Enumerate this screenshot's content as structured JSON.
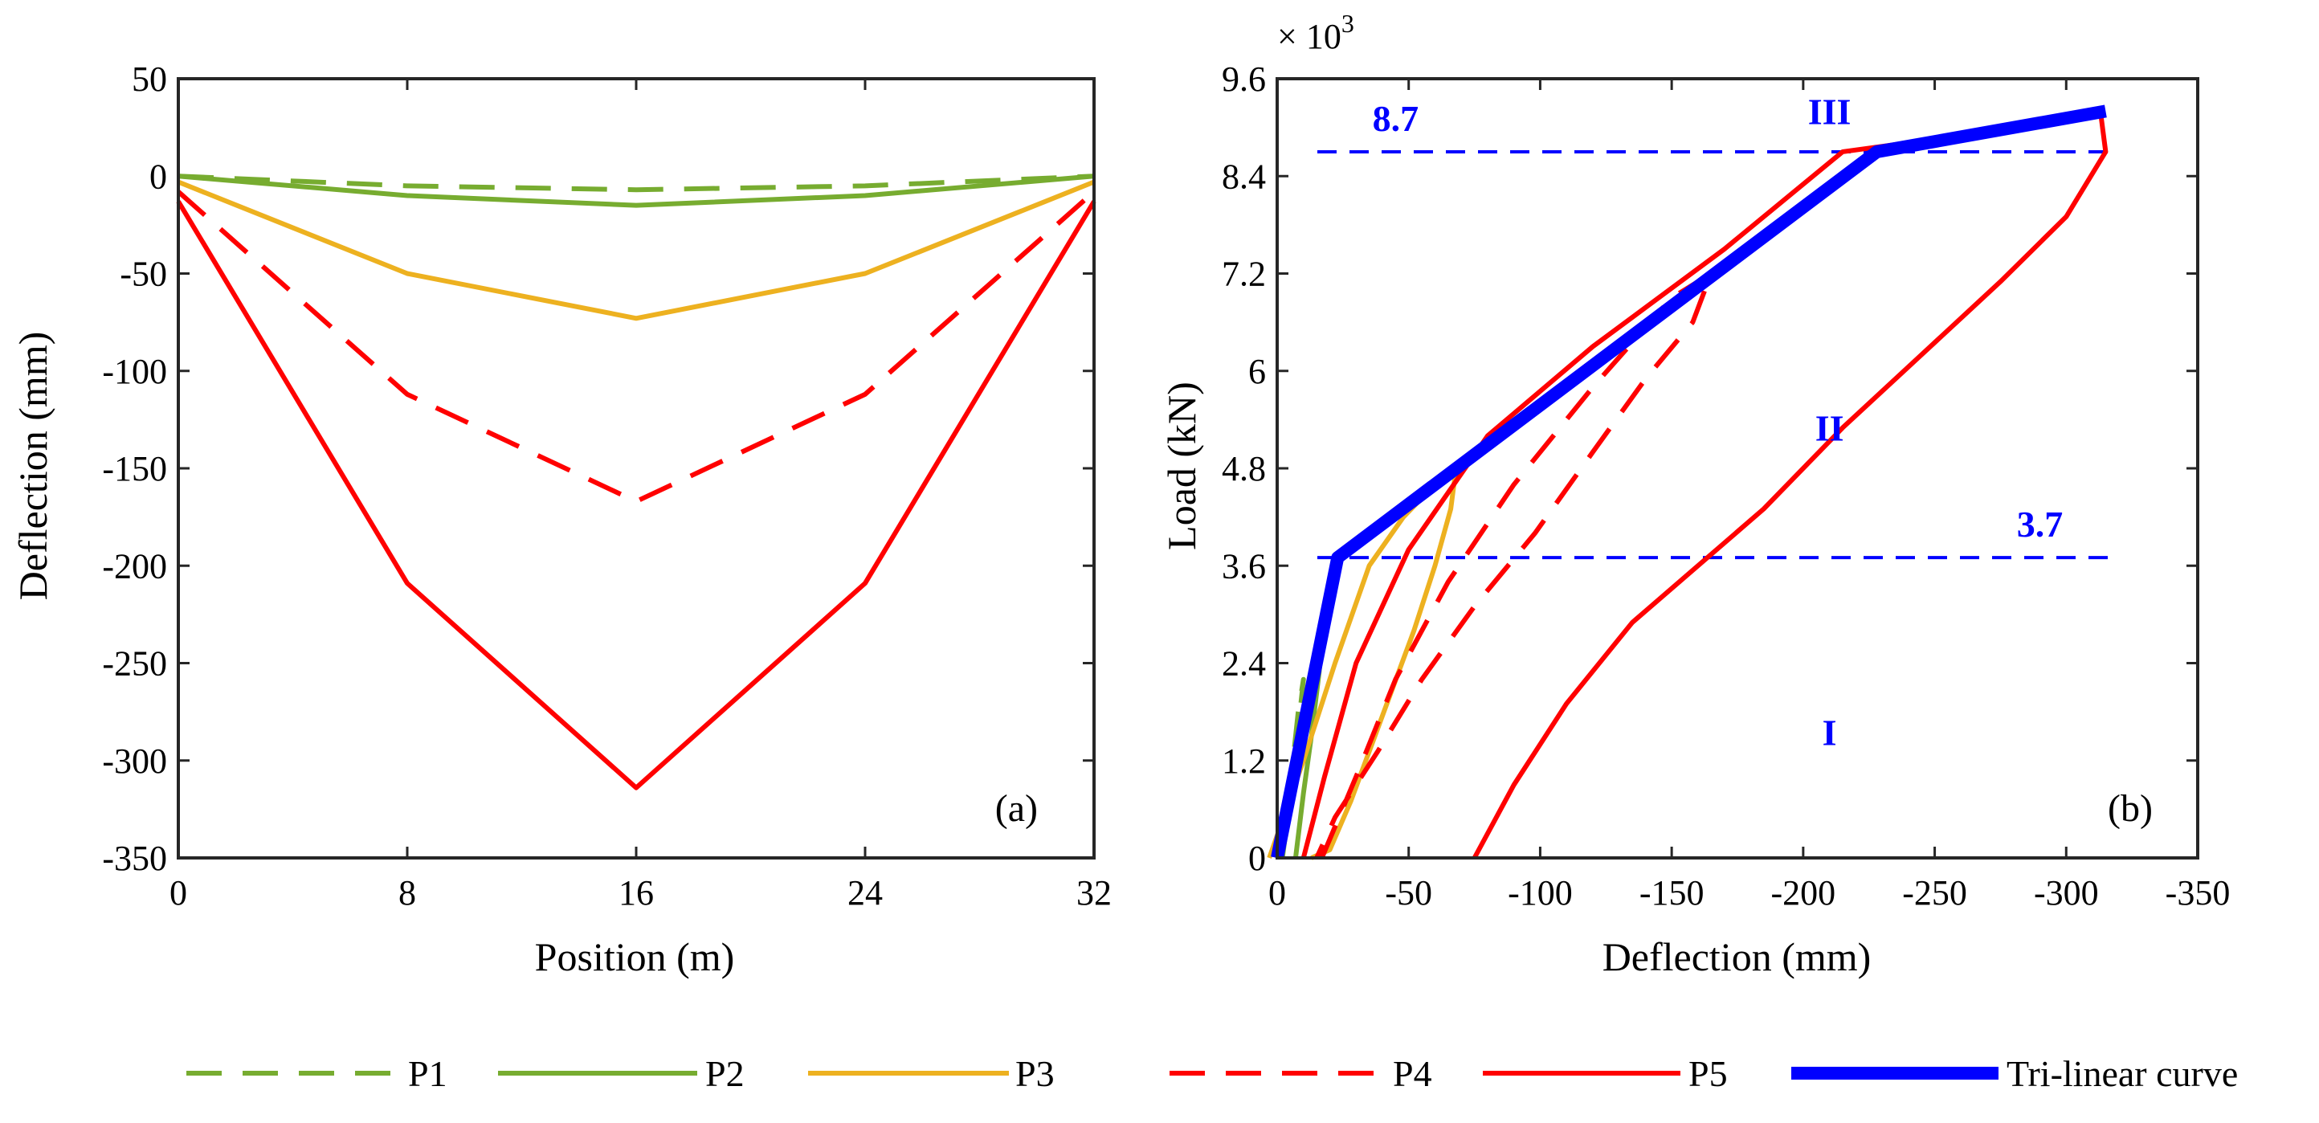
{
  "colors": {
    "green": "#77ac30",
    "yellow": "#edb120",
    "red": "#ff0000",
    "blue": "#0000ff",
    "axis": "#262626"
  },
  "legend": [
    {
      "name": "P1",
      "color": "#77ac30",
      "dash": "dashed"
    },
    {
      "name": "P2",
      "color": "#77ac30",
      "dash": "solid"
    },
    {
      "name": "P3",
      "color": "#edb120",
      "dash": "solid"
    },
    {
      "name": "P4",
      "color": "#ff0000",
      "dash": "dashed"
    },
    {
      "name": "P5",
      "color": "#ff0000",
      "dash": "solid"
    },
    {
      "name": "Tri-linear curve",
      "color": "#0000ff",
      "dash": "solid",
      "thick": true
    }
  ],
  "chart_data": [
    {
      "type": "line",
      "panel_label": "(a)",
      "xlabel": "Position (m)",
      "ylabel": "Deflection (mm)",
      "xlim": [
        0,
        32
      ],
      "ylim": [
        -350,
        50
      ],
      "xticks": [
        0,
        8,
        16,
        24,
        32
      ],
      "xtick_labels": [
        "0",
        "8",
        "16",
        "24",
        "32"
      ],
      "yticks": [
        50,
        0,
        -50,
        -100,
        -150,
        -200,
        -250,
        -300,
        -350
      ],
      "ytick_labels": [
        "50",
        "0",
        "-50",
        "-100",
        "-150",
        "-200",
        "-250",
        "-300",
        "-350"
      ],
      "x": [
        0,
        8,
        16,
        24,
        32
      ],
      "series": [
        {
          "name": "P1",
          "values": [
            0,
            -5,
            -7,
            -5,
            0
          ]
        },
        {
          "name": "P2",
          "values": [
            0,
            -10,
            -15,
            -10,
            0
          ]
        },
        {
          "name": "P3",
          "values": [
            -3,
            -50,
            -73,
            -50,
            -3
          ]
        },
        {
          "name": "P4",
          "values": [
            -8,
            -112,
            -167,
            -112,
            -8
          ]
        },
        {
          "name": "P5",
          "values": [
            -13,
            -209,
            -314,
            -209,
            -13
          ]
        }
      ]
    },
    {
      "type": "line",
      "panel_label": "(b)",
      "xlabel": "Deflection (mm)",
      "ylabel": "Load (kN)",
      "multiplier": "× 10",
      "multiplier_exp": "3",
      "xlim": [
        0,
        -350
      ],
      "ylim": [
        0,
        9.6
      ],
      "xticks": [
        0,
        -50,
        -100,
        -150,
        -200,
        -250,
        -300,
        -350
      ],
      "xtick_labels": [
        "0",
        "-50",
        "-100",
        "-150",
        "-200",
        "-250",
        "-300",
        "-350"
      ],
      "yticks": [
        0,
        1.2,
        2.4,
        3.6,
        4.8,
        6,
        7.2,
        8.4,
        9.6
      ],
      "ytick_labels": [
        "0",
        "1.2",
        "2.4",
        "3.6",
        "4.8",
        "6",
        "7.2",
        "8.4",
        "9.6"
      ],
      "hlines": [
        {
          "y": 8.7,
          "label": "8.7",
          "label_x": -45
        },
        {
          "y": 3.7,
          "label": "3.7",
          "label_x": -290
        }
      ],
      "region_labels": [
        {
          "text": "III",
          "x": -210,
          "y": 9.2
        },
        {
          "text": "II",
          "x": -210,
          "y": 5.3
        },
        {
          "text": "I",
          "x": -210,
          "y": 1.55
        }
      ],
      "series": [
        {
          "name": "Tri-linear curve",
          "x": [
            0,
            -23,
            -228,
            -315
          ],
          "y": [
            0,
            3.7,
            8.7,
            9.2
          ]
        },
        {
          "name": "P1",
          "x": [
            0,
            -3,
            -6,
            -8,
            -10,
            -8,
            -6,
            -4,
            -2
          ],
          "y": [
            0,
            0.6,
            1.2,
            1.8,
            2.2,
            1.6,
            1.0,
            0.5,
            0
          ]
        },
        {
          "name": "P2",
          "x": [
            0,
            -4,
            -9,
            -14,
            -18,
            -16,
            -13,
            -10,
            -7
          ],
          "y": [
            0,
            0.8,
            1.6,
            2.4,
            3.0,
            2.3,
            1.5,
            0.8,
            0
          ]
        },
        {
          "name": "P3",
          "x": [
            3,
            -10,
            -22,
            -35,
            -48,
            -60,
            -68,
            -66,
            -60,
            -52,
            -44,
            -36,
            -28,
            -20,
            -13
          ],
          "y": [
            0,
            1.2,
            2.4,
            3.6,
            4.2,
            4.6,
            4.8,
            4.3,
            3.6,
            2.8,
            2.1,
            1.4,
            0.7,
            0.1,
            0
          ]
        },
        {
          "name": "P4",
          "x": [
            -17,
            -30,
            -45,
            -65,
            -90,
            -120,
            -150,
            -165,
            -158,
            -140,
            -120,
            -98,
            -75,
            -55,
            -38,
            -22,
            -15
          ],
          "y": [
            0,
            1.0,
            2.2,
            3.4,
            4.6,
            5.8,
            6.9,
            7.2,
            6.6,
            5.9,
            5.0,
            4.0,
            3.1,
            2.2,
            1.3,
            0.5,
            0
          ]
        },
        {
          "name": "P5",
          "x": [
            -75,
            -90,
            -110,
            -135,
            -160,
            -185,
            -215,
            -245,
            -275,
            -300,
            -315,
            -313,
            -295,
            -260,
            -215,
            -170,
            -120,
            -80,
            -50,
            -30,
            -18,
            -10
          ],
          "y": [
            0,
            0.9,
            1.9,
            2.9,
            3.6,
            4.3,
            5.3,
            6.2,
            7.1,
            7.9,
            8.7,
            9.2,
            9.1,
            8.9,
            8.7,
            7.5,
            6.3,
            5.2,
            3.8,
            2.4,
            1.0,
            0
          ]
        }
      ]
    }
  ]
}
